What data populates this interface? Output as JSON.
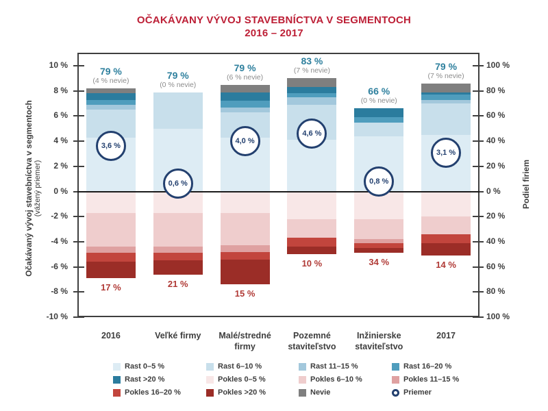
{
  "title": {
    "line1": "OČAKÁVANY VÝVOJ STAVEBNÍCTVA V SEGMENTOCH",
    "line2": "2016 – 2017"
  },
  "colors": {
    "title": "#bd1f36",
    "rast_0_5": "#ddecf4",
    "rast_6_10": "#c8dfeb",
    "rast_11_15": "#a3c8dc",
    "rast_16_20": "#4f9dbd",
    "rast_gt20": "#2b7c9e",
    "pokles_0_5": "#f8e7e7",
    "pokles_6_10": "#efcdcd",
    "pokles_11_15": "#dfa1a1",
    "pokles_16_20": "#c2453d",
    "pokles_gt20": "#9b2d27",
    "nevie": "#7f7f7f",
    "priemer_outline": "#23406f",
    "share_label": "#2d7f9d",
    "nevie_label": "#8c8c8c",
    "pokles_label": "#b03a36",
    "axis_text": "#3d3d3d"
  },
  "chart_data": {
    "type": "bar",
    "stacked": true,
    "grid": "off",
    "title": "OČAKÁVANY VÝVOJ STAVEBNÍCTVA V SEGMENTOCH 2016 – 2017",
    "left_axis": {
      "label": "Očakávaný vývoj stavebníctva v segmentoch",
      "sublabel": "(vážený priemer)",
      "unit": "%",
      "ticks": [
        10,
        8,
        6,
        4,
        2,
        0,
        -2,
        -4,
        -6,
        -8,
        -10
      ],
      "range": [
        -10,
        10
      ]
    },
    "right_axis": {
      "label": "Podiel firiem",
      "unit": "%",
      "ticks": [
        100,
        80,
        60,
        40,
        20,
        0,
        20,
        40,
        60,
        80,
        100
      ]
    },
    "series_order_rast": [
      "Rast 0–5 %",
      "Rast 6–10 %",
      "Rast 11–15 %",
      "Rast 16–20 %",
      "Rast >20 %"
    ],
    "series_order_pokles": [
      "Pokles 0–5 %",
      "Pokles 6–10 %",
      "Pokles 11–15 %",
      "Pokles 16–20 %",
      "Pokles >20 %"
    ],
    "categories": [
      [
        "2016"
      ],
      [
        "Veľké firmy"
      ],
      [
        "Malé/stredné",
        "firmy"
      ],
      [
        "Pozemné",
        "staviteľstvo"
      ],
      [
        "Inžinierske",
        "staviteľstvo"
      ],
      [
        "2017"
      ]
    ],
    "bars": [
      {
        "category": "2016",
        "rast": [
          43,
          22,
          4,
          4,
          5
        ],
        "nevie": 4,
        "pokles": [
          17,
          27,
          5,
          7,
          13
        ],
        "priemer": 3.6,
        "priemer_label": "3,6 %",
        "share_label": "79 %",
        "nevie_label": "(4 % nevie)",
        "pokles_label": "17 %"
      },
      {
        "category": "Veľké firmy",
        "rast": [
          50,
          29,
          0,
          0,
          0
        ],
        "nevie": 0,
        "pokles": [
          17,
          27,
          5,
          6,
          11
        ],
        "priemer": 0.6,
        "priemer_label": "0,6 %",
        "share_label": "79 %",
        "nevie_label": "(0 % nevie)",
        "pokles_label": "21 %"
      },
      {
        "category": "Malé/stredné firmy",
        "rast": [
          43,
          20,
          4,
          5,
          7
        ],
        "nevie": 6,
        "pokles": [
          17,
          26,
          5,
          6,
          20
        ],
        "priemer": 4.0,
        "priemer_label": "4,0 %",
        "share_label": "79 %",
        "nevie_label": "(6 % nevie)",
        "pokles_label": "15 %"
      },
      {
        "category": "Pozemné staviteľstvo",
        "rast": [
          41,
          28,
          6,
          3,
          5
        ],
        "nevie": 7,
        "pokles": [
          22,
          15,
          0,
          7,
          6
        ],
        "priemer": 4.6,
        "priemer_label": "4,6 %",
        "share_label": "83 %",
        "nevie_label": "(7 % nevie)",
        "pokles_label": "10 %"
      },
      {
        "category": "Inžinierske staviteľstvo",
        "rast": [
          44,
          11,
          0,
          4,
          7
        ],
        "nevie": 0,
        "pokles": [
          22,
          16,
          3,
          4,
          4
        ],
        "priemer": 0.8,
        "priemer_label": "0,8 %",
        "share_label": "66 %",
        "nevie_label": "(0 % nevie)",
        "pokles_label": "34 %"
      },
      {
        "category": "2017",
        "rast": [
          45,
          25,
          3,
          4,
          2
        ],
        "nevie": 7,
        "pokles": [
          20,
          14,
          0,
          7,
          10
        ],
        "priemer": 3.1,
        "priemer_label": "3,1 %",
        "share_label": "79 %",
        "nevie_label": "(7 % nevie)",
        "pokles_label": "14 %"
      }
    ],
    "legend": [
      {
        "label": "Rast 0–5 %",
        "color_key": "rast_0_5",
        "shape": "square"
      },
      {
        "label": "Rast 6–10 %",
        "color_key": "rast_6_10",
        "shape": "square"
      },
      {
        "label": "Rast 11–15 %",
        "color_key": "rast_11_15",
        "shape": "square"
      },
      {
        "label": "Rast 16–20 %",
        "color_key": "rast_16_20",
        "shape": "square"
      },
      {
        "label": "Rast >20 %",
        "color_key": "rast_gt20",
        "shape": "square"
      },
      {
        "label": "Pokles 0–5 %",
        "color_key": "pokles_0_5",
        "shape": "square"
      },
      {
        "label": "Pokles 6–10 %",
        "color_key": "pokles_6_10",
        "shape": "square"
      },
      {
        "label": "Pokles 11–15 %",
        "color_key": "pokles_11_15",
        "shape": "square"
      },
      {
        "label": "Pokles 16–20 %",
        "color_key": "pokles_16_20",
        "shape": "square"
      },
      {
        "label": "Pokles >20 %",
        "color_key": "pokles_gt20",
        "shape": "square"
      },
      {
        "label": "Nevie",
        "color_key": "nevie",
        "shape": "square"
      },
      {
        "label": "Priemer",
        "color_key": "priemer_outline",
        "shape": "circle"
      }
    ]
  }
}
